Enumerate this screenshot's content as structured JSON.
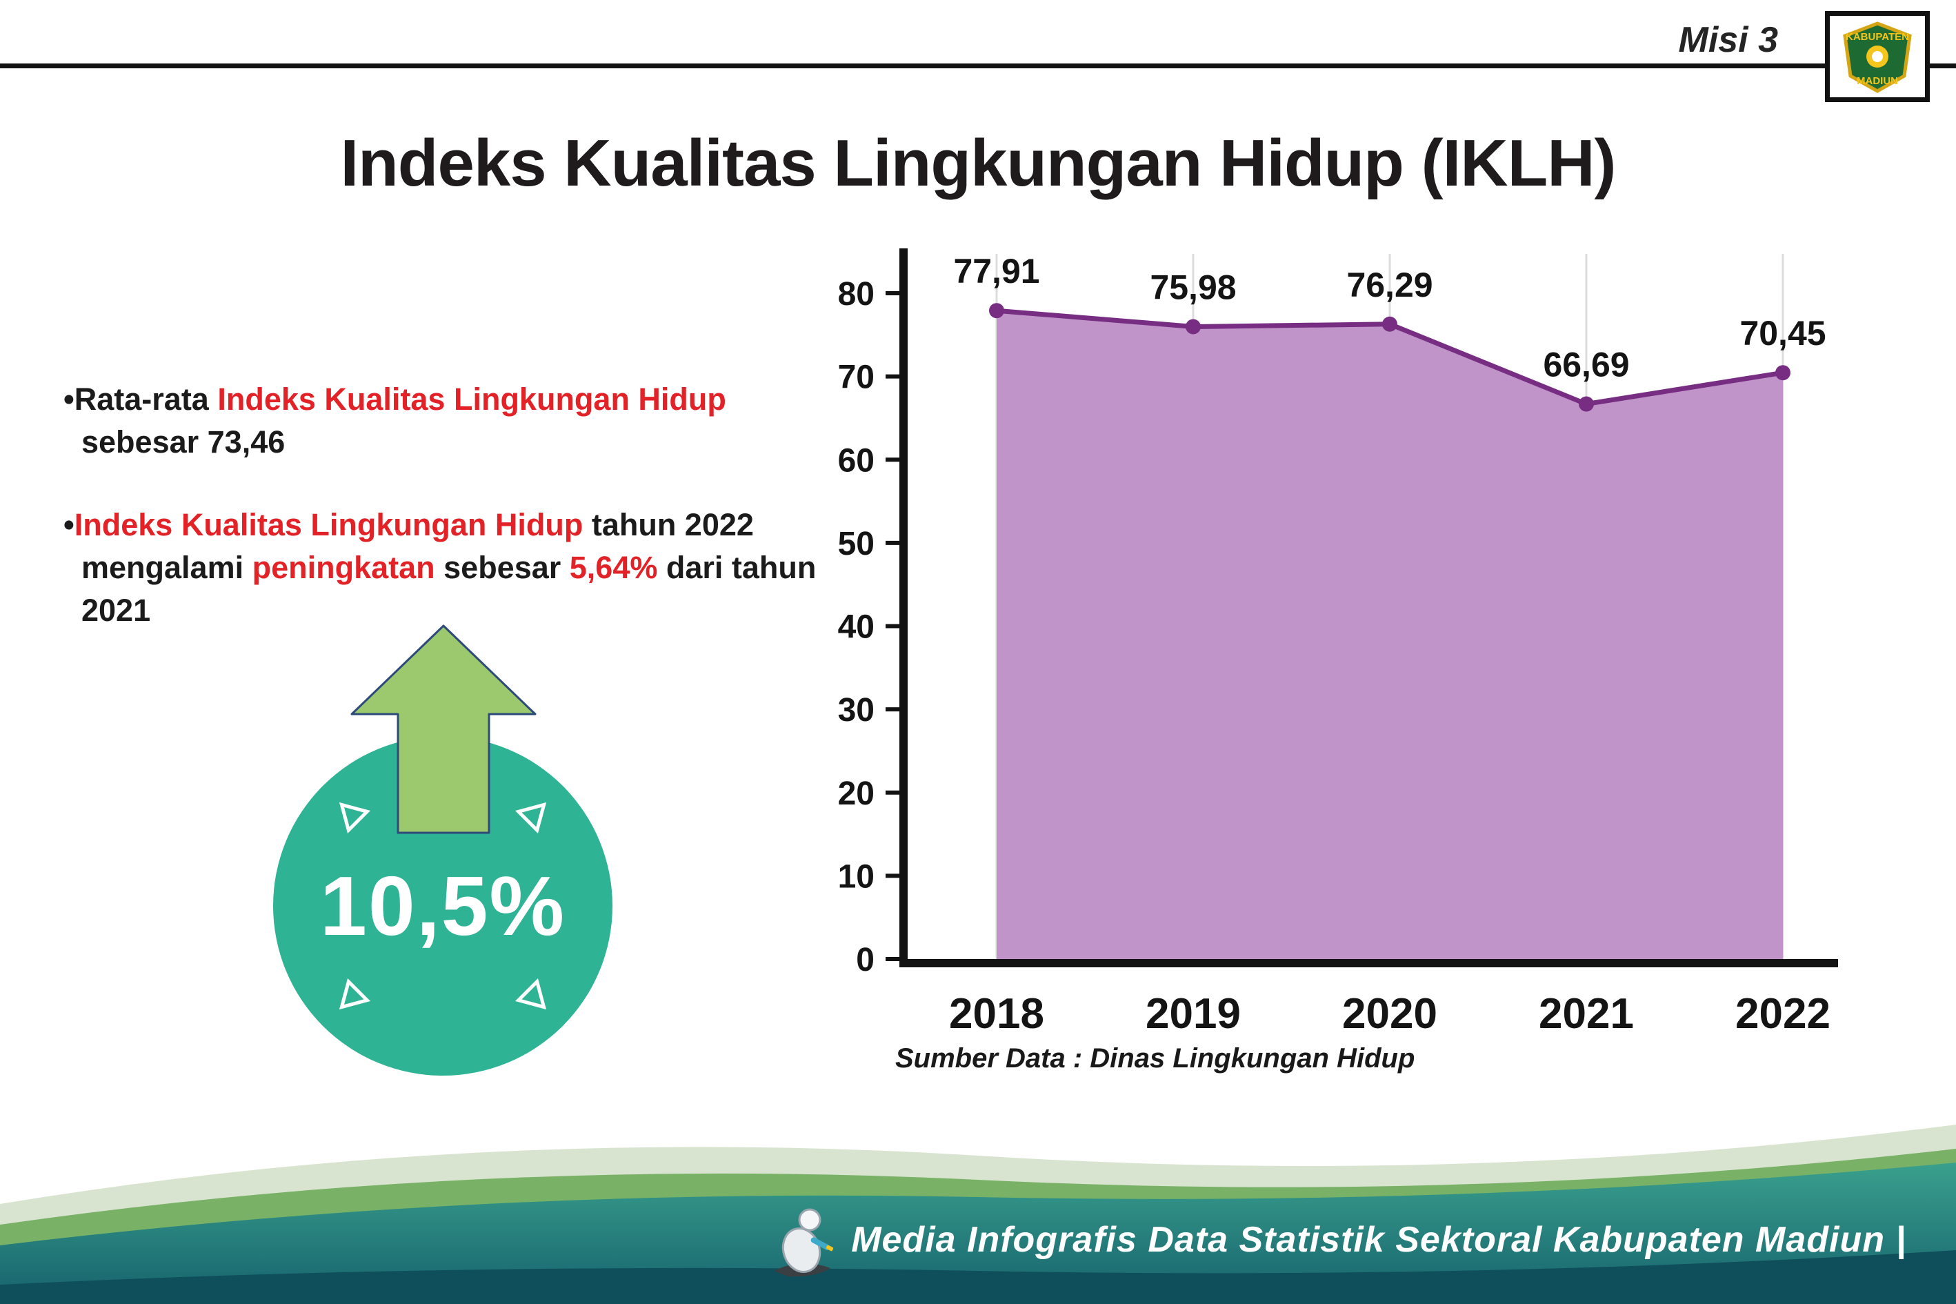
{
  "header": {
    "misi": "Misi 3",
    "title": "Indeks Kualitas Lingkungan Hidup (IKLH)",
    "logo_top": "KABUPATEN",
    "logo_bottom": "MADIUN"
  },
  "bullets": {
    "marker": "•",
    "item1": {
      "pre": "Rata-rata ",
      "highlight": "Indeks Kualitas Lingkungan Hidup",
      "post": " sebesar 73,46"
    },
    "item2": {
      "highlight1": "Indeks Kualitas Lingkungan Hidup",
      "mid1": " tahun 2022 mengalami ",
      "highlight2": "peningkatan",
      "mid2": " sebesar ",
      "highlight3": "5,64%",
      "post": " dari tahun 2021"
    }
  },
  "badge": {
    "value": "10,5%"
  },
  "chart_data": {
    "type": "area",
    "title": "Indeks Kualitas Lingkungan Hidup (IKLH)",
    "categories": [
      "2018",
      "2019",
      "2020",
      "2021",
      "2022"
    ],
    "values": [
      77.91,
      75.98,
      76.29,
      66.69,
      70.45
    ],
    "value_labels": [
      "77,91",
      "75,98",
      "76,29",
      "66,69",
      "70,45"
    ],
    "ylim": [
      0,
      80
    ],
    "ytick_step": 10,
    "grid": "vertical-light",
    "legend": "none",
    "fill_color": "#c094c9",
    "line_color": "#762d82",
    "source": "Sumber Data : Dinas Lingkungan Hidup"
  },
  "colors": {
    "accent_red": "#e32227",
    "badge_teal": "#2eb394",
    "arrow_green": "#9cc96e",
    "axis_black": "#131313"
  },
  "footer": {
    "credit": "Media Infografis Data Statistik Sektoral Kabupaten Madiun |"
  }
}
